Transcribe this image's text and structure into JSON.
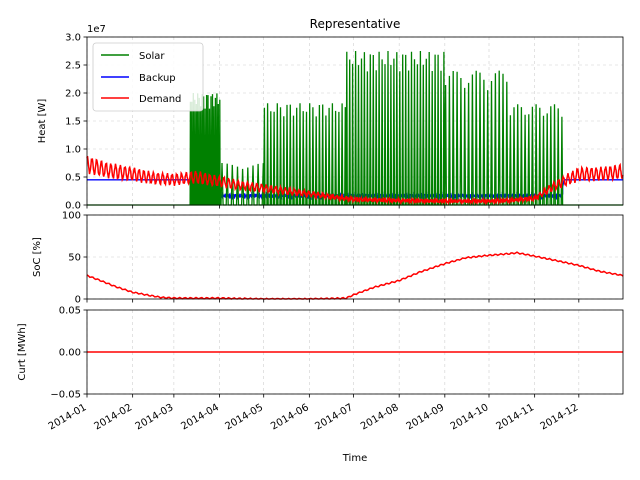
{
  "chart_data": [
    {
      "type": "line",
      "title": "Representative",
      "ylabel": "Heat [W]",
      "y_offset_text": "1e7",
      "ylim": [
        0,
        3.0
      ],
      "yticks": [
        "0.0",
        "0.5",
        "1.0",
        "1.5",
        "2.0",
        "2.5",
        "3.0"
      ],
      "grid": true,
      "legend_position": "top-left",
      "series": [
        {
          "name": "Solar",
          "color": "#008000",
          "segments": [
            {
              "start": "2014-03-12",
              "end": "2014-04-02",
              "peak": 2.0,
              "period_days": 1.0
            },
            {
              "start": "2014-04-02",
              "end": "2014-05-01",
              "peak": 0.75,
              "period_days": 3.5
            },
            {
              "start": "2014-05-01",
              "end": "2014-06-26",
              "peak": 1.82,
              "period_days": 2.2
            },
            {
              "start": "2014-06-26",
              "end": "2014-09-01",
              "peak": 2.75,
              "period_days": 2.0
            },
            {
              "start": "2014-09-01",
              "end": "2014-10-15",
              "peak": 2.4,
              "period_days": 2.6
            },
            {
              "start": "2014-10-15",
              "end": "2014-11-20",
              "peak": 1.8,
              "period_days": 2.5
            }
          ]
        },
        {
          "name": "Backup",
          "color": "#0000ff",
          "x": [
            "2014-01-01",
            "2014-03-15",
            "2014-03-16",
            "2014-06-26",
            "2014-11-20",
            "2014-11-21",
            "2014-12-31"
          ],
          "y": [
            0.45,
            0.45,
            0.2,
            0.2,
            0.2,
            0.45,
            0.45
          ]
        },
        {
          "name": "Demand",
          "color": "#ff0000",
          "x": [
            "2014-01-01",
            "2014-01-15",
            "2014-02-01",
            "2014-02-15",
            "2014-03-01",
            "2014-03-15",
            "2014-04-01",
            "2014-04-15",
            "2014-05-01",
            "2014-05-15",
            "2014-06-01",
            "2014-06-15",
            "2014-07-01",
            "2014-08-01",
            "2014-09-01",
            "2014-10-01",
            "2014-10-15",
            "2014-11-01",
            "2014-11-15",
            "2014-12-01",
            "2014-12-15",
            "2014-12-31"
          ],
          "y": [
            0.72,
            0.62,
            0.55,
            0.48,
            0.45,
            0.5,
            0.42,
            0.35,
            0.3,
            0.25,
            0.2,
            0.15,
            0.1,
            0.08,
            0.07,
            0.07,
            0.08,
            0.12,
            0.35,
            0.55,
            0.55,
            0.6
          ],
          "amplitude": 0.2
        }
      ]
    },
    {
      "type": "line",
      "ylabel": "SoC [%]",
      "ylim": [
        0,
        100
      ],
      "yticks": [
        "0",
        "50",
        "100"
      ],
      "grid": true,
      "series": [
        {
          "name": "SoC",
          "color": "#ff0000",
          "x": [
            "2014-01-01",
            "2014-01-10",
            "2014-01-20",
            "2014-02-01",
            "2014-02-10",
            "2014-02-20",
            "2014-03-01",
            "2014-04-01",
            "2014-05-01",
            "2014-06-01",
            "2014-06-26",
            "2014-07-01",
            "2014-07-15",
            "2014-08-01",
            "2014-08-15",
            "2014-09-01",
            "2014-09-15",
            "2014-10-01",
            "2014-10-15",
            "2014-10-20",
            "2014-11-01",
            "2014-11-15",
            "2014-12-01",
            "2014-12-15",
            "2014-12-31"
          ],
          "y": [
            28,
            22,
            15,
            8,
            5,
            2,
            1,
            1,
            0,
            0,
            1,
            5,
            14,
            22,
            32,
            42,
            49,
            52,
            54,
            55,
            51,
            46,
            40,
            33,
            28
          ]
        }
      ]
    },
    {
      "type": "line",
      "ylabel": "Curt [MWh]",
      "xlabel": "Time",
      "ylim": [
        -0.05,
        0.05
      ],
      "yticks": [
        "−0.05",
        "0.00",
        "0.05"
      ],
      "xticks": [
        "2014-01",
        "2014-02",
        "2014-03",
        "2014-04",
        "2014-05",
        "2014-06",
        "2014-07",
        "2014-08",
        "2014-09",
        "2014-10",
        "2014-11",
        "2014-12"
      ],
      "grid": true,
      "series": [
        {
          "name": "Curt",
          "color": "#ff0000",
          "x": [
            "2014-01-01",
            "2014-12-31"
          ],
          "y": [
            0.0,
            0.0
          ]
        }
      ]
    }
  ]
}
